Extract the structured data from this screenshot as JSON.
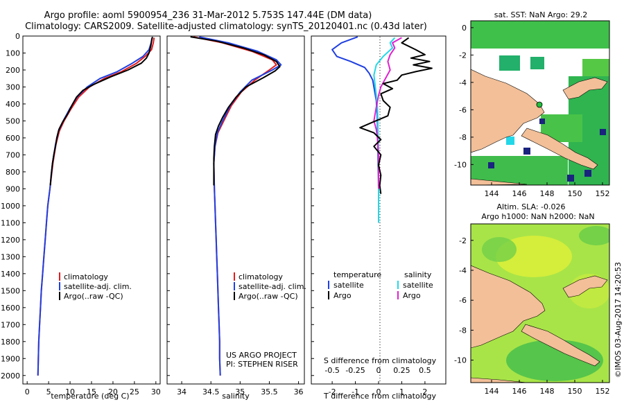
{
  "header": {
    "line1": "Argo profile: aoml 5900954_236 31-Mar-2012 5.753S 147.44E (DM data)",
    "line2": "Climatology: CARS2009. Satellite-adjusted climatology: synTS_20120401.nc (0.43d later)"
  },
  "colors": {
    "climatology": "#e41a1c",
    "satellite": "#1f3fe0",
    "argo": "#000000",
    "sal_satellite": "#22d8e8",
    "sal_argo": "#e020d0",
    "land": "#f2bf98"
  },
  "chart_data": [
    {
      "id": "temp",
      "type": "line",
      "xlabel": "temperature (deg C)",
      "xlim": [
        -1,
        31
      ],
      "ylim": [
        0,
        2050
      ],
      "y_inverted": true,
      "xticks": [
        0,
        5,
        10,
        15,
        20,
        25,
        30
      ],
      "yticks": [
        0,
        100,
        200,
        300,
        400,
        500,
        600,
        700,
        800,
        900,
        1000,
        1100,
        1200,
        1300,
        1400,
        1500,
        1600,
        1700,
        1800,
        1900,
        2000
      ],
      "legend": [
        "climatology",
        "satellite-adj. clim.",
        "Argo(..raw -QC)"
      ],
      "series": [
        {
          "name": "climatology",
          "color": "#e41a1c",
          "points": [
            [
              29.6,
              10
            ],
            [
              29.4,
              40
            ],
            [
              29.0,
              80
            ],
            [
              27.5,
              120
            ],
            [
              25.5,
              160
            ],
            [
              22.0,
              210
            ],
            [
              18.0,
              250
            ],
            [
              14.5,
              300
            ],
            [
              12.0,
              360
            ],
            [
              10.2,
              430
            ],
            [
              8.6,
              500
            ],
            [
              7.5,
              560
            ],
            [
              6.7,
              640
            ],
            [
              6.0,
              750
            ],
            [
              5.3,
              900
            ],
            [
              4.8,
              1000
            ],
            [
              4.5,
              1100
            ],
            [
              4.2,
              1200
            ],
            [
              3.9,
              1300
            ],
            [
              3.6,
              1400
            ],
            [
              3.3,
              1500
            ],
            [
              3.1,
              1600
            ],
            [
              2.9,
              1700
            ],
            [
              2.7,
              1800
            ],
            [
              2.6,
              1900
            ],
            [
              2.5,
              2000
            ]
          ]
        },
        {
          "name": "satellite-adj. clim.",
          "color": "#1f3fe0",
          "points": [
            [
              29.1,
              10
            ],
            [
              28.9,
              40
            ],
            [
              28.4,
              80
            ],
            [
              27.0,
              120
            ],
            [
              24.5,
              160
            ],
            [
              21.0,
              210
            ],
            [
              17.0,
              250
            ],
            [
              14.0,
              300
            ],
            [
              11.6,
              360
            ],
            [
              9.9,
              430
            ],
            [
              8.4,
              500
            ],
            [
              7.3,
              560
            ],
            [
              6.6,
              640
            ],
            [
              5.9,
              750
            ],
            [
              5.3,
              900
            ],
            [
              4.8,
              1000
            ],
            [
              4.5,
              1100
            ],
            [
              4.2,
              1200
            ],
            [
              3.9,
              1300
            ],
            [
              3.6,
              1400
            ],
            [
              3.3,
              1500
            ],
            [
              3.1,
              1600
            ],
            [
              2.9,
              1700
            ],
            [
              2.7,
              1800
            ],
            [
              2.6,
              1900
            ],
            [
              2.5,
              2000
            ]
          ]
        },
        {
          "name": "Argo(..raw -QC)",
          "color": "#000000",
          "points": [
            [
              29.2,
              5
            ],
            [
              29.0,
              30
            ],
            [
              28.8,
              60
            ],
            [
              28.4,
              100
            ],
            [
              27.8,
              130
            ],
            [
              26.6,
              160
            ],
            [
              23.5,
              200
            ],
            [
              19.5,
              240
            ],
            [
              15.5,
              285
            ],
            [
              13.0,
              320
            ],
            [
              11.5,
              360
            ],
            [
              10.6,
              400
            ],
            [
              9.4,
              460
            ],
            [
              8.2,
              510
            ],
            [
              7.4,
              550
            ],
            [
              6.9,
              600
            ],
            [
              6.6,
              650
            ],
            [
              6.2,
              700
            ],
            [
              5.9,
              750
            ],
            [
              5.6,
              820
            ],
            [
              5.4,
              880
            ]
          ]
        }
      ]
    },
    {
      "id": "sal",
      "type": "line",
      "xlabel": "salinity",
      "xlim": [
        33.75,
        36.1
      ],
      "ylim": [
        0,
        2050
      ],
      "y_inverted": true,
      "xticks": [
        34,
        34.5,
        35,
        35.5,
        36
      ],
      "legend": [
        "climatology",
        "satellite-adj. clim.",
        "Argo(..raw -QC)"
      ],
      "footer": [
        "US ARGO PROJECT",
        "PI: STEPHEN RISER"
      ],
      "series": [
        {
          "name": "climatology",
          "color": "#e41a1c",
          "points": [
            [
              34.2,
              5
            ],
            [
              34.7,
              40
            ],
            [
              35.2,
              90
            ],
            [
              35.55,
              140
            ],
            [
              35.62,
              170
            ],
            [
              35.5,
              200
            ],
            [
              35.25,
              260
            ],
            [
              35.02,
              330
            ],
            [
              34.85,
              410
            ],
            [
              34.72,
              500
            ],
            [
              34.62,
              570
            ],
            [
              34.57,
              650
            ],
            [
              34.55,
              750
            ],
            [
              34.56,
              900
            ],
            [
              34.57,
              1000
            ],
            [
              34.58,
              1100
            ],
            [
              34.59,
              1200
            ],
            [
              34.6,
              1300
            ],
            [
              34.61,
              1400
            ],
            [
              34.62,
              1500
            ],
            [
              34.63,
              1600
            ],
            [
              34.64,
              1700
            ],
            [
              34.65,
              1800
            ],
            [
              34.65,
              1900
            ],
            [
              34.66,
              2000
            ]
          ]
        },
        {
          "name": "satellite-adj. clim.",
          "color": "#1f3fe0",
          "points": [
            [
              34.3,
              5
            ],
            [
              34.8,
              40
            ],
            [
              35.3,
              90
            ],
            [
              35.62,
              140
            ],
            [
              35.7,
              170
            ],
            [
              35.55,
              200
            ],
            [
              35.2,
              260
            ],
            [
              35.0,
              330
            ],
            [
              34.83,
              410
            ],
            [
              34.7,
              500
            ],
            [
              34.61,
              570
            ],
            [
              34.57,
              650
            ],
            [
              34.55,
              750
            ],
            [
              34.56,
              900
            ],
            [
              34.57,
              1000
            ],
            [
              34.58,
              1100
            ],
            [
              34.59,
              1200
            ],
            [
              34.6,
              1300
            ],
            [
              34.61,
              1400
            ],
            [
              34.62,
              1500
            ],
            [
              34.63,
              1600
            ],
            [
              34.64,
              1700
            ],
            [
              34.65,
              1800
            ],
            [
              34.65,
              1900
            ],
            [
              34.66,
              2000
            ]
          ]
        },
        {
          "name": "Argo(..raw -QC)",
          "color": "#000000",
          "points": [
            [
              34.15,
              5
            ],
            [
              34.6,
              30
            ],
            [
              35.05,
              70
            ],
            [
              35.4,
              110
            ],
            [
              35.62,
              150
            ],
            [
              35.68,
              180
            ],
            [
              35.6,
              205
            ],
            [
              35.4,
              245
            ],
            [
              35.1,
              300
            ],
            [
              34.93,
              360
            ],
            [
              34.8,
              420
            ],
            [
              34.7,
              480
            ],
            [
              34.63,
              530
            ],
            [
              34.58,
              580
            ],
            [
              34.56,
              650
            ],
            [
              34.55,
              720
            ],
            [
              34.55,
              800
            ],
            [
              34.55,
              880
            ]
          ]
        }
      ]
    },
    {
      "id": "diff",
      "type": "line",
      "xlabel": "T difference from climatology",
      "x2label": "S difference from climatology",
      "xlim": [
        -2.9,
        2.9
      ],
      "ylim": [
        0,
        2050
      ],
      "y_inverted": true,
      "xticks": [
        -2,
        -1,
        0,
        1,
        2
      ],
      "x2ticks": [
        {
          "label": "-0.5",
          "value": -2
        },
        {
          "label": "-0.25",
          "value": -1
        },
        {
          "label": "0",
          "value": 0
        },
        {
          "label": "0.25",
          "value": 1
        },
        {
          "label": "0.5",
          "value": 2
        }
      ],
      "legend_left_title": "temperature",
      "legend_right_title": "salinity",
      "legend_left": [
        "satellite",
        "Argo"
      ],
      "legend_right": [
        "satellite",
        "Argo"
      ],
      "series": [
        {
          "name": "T satellite",
          "color": "#1f3fe0",
          "points": [
            [
              -0.9,
              5
            ],
            [
              -1.6,
              40
            ],
            [
              -2.0,
              80
            ],
            [
              -1.8,
              120
            ],
            [
              -1.2,
              150
            ],
            [
              -0.6,
              185
            ],
            [
              -0.4,
              220
            ],
            [
              -0.25,
              260
            ],
            [
              -0.2,
              300
            ],
            [
              -0.15,
              340
            ],
            [
              -0.1,
              380
            ],
            [
              -0.08,
              420
            ],
            [
              -0.06,
              460
            ],
            [
              -0.05,
              500
            ],
            [
              -0.04,
              560
            ],
            [
              -0.03,
              640
            ],
            [
              -0.02,
              720
            ],
            [
              -0.01,
              820
            ],
            [
              0,
              900
            ],
            [
              0,
              1000
            ],
            [
              0,
              1100
            ]
          ]
        },
        {
          "name": "S satellite",
          "color": "#22d8e8",
          "points": [
            [
              0.7,
              10
            ],
            [
              0.5,
              40
            ],
            [
              0.6,
              70
            ],
            [
              0.2,
              120
            ],
            [
              -0.1,
              170
            ],
            [
              -0.2,
              230
            ],
            [
              -0.15,
              290
            ],
            [
              -0.1,
              350
            ],
            [
              -0.05,
              420
            ],
            [
              -0.03,
              500
            ],
            [
              -0.02,
              600
            ],
            [
              0,
              700
            ],
            [
              0,
              800
            ],
            [
              0,
              900
            ],
            [
              0,
              1000
            ],
            [
              0,
              1100
            ]
          ]
        },
        {
          "name": "S Argo",
          "color": "#e020d0",
          "points": [
            [
              1.0,
              10
            ],
            [
              0.6,
              40
            ],
            [
              0.7,
              70
            ],
            [
              0.5,
              110
            ],
            [
              0.4,
              150
            ],
            [
              0.5,
              200
            ],
            [
              0.3,
              250
            ],
            [
              0.1,
              300
            ],
            [
              0.0,
              350
            ],
            [
              -0.1,
              420
            ],
            [
              -0.2,
              500
            ],
            [
              -0.1,
              550
            ],
            [
              -0.05,
              600
            ],
            [
              0,
              700
            ],
            [
              0,
              800
            ],
            [
              0,
              900
            ]
          ]
        },
        {
          "name": "T Argo",
          "color": "#000000",
          "points": [
            [
              1.3,
              10
            ],
            [
              1.0,
              40
            ],
            [
              1.6,
              80
            ],
            [
              2.0,
              110
            ],
            [
              1.4,
              130
            ],
            [
              2.2,
              150
            ],
            [
              1.5,
              170
            ],
            [
              2.3,
              190
            ],
            [
              1.6,
              210
            ],
            [
              1.0,
              230
            ],
            [
              0.8,
              260
            ],
            [
              0.2,
              280
            ],
            [
              0.6,
              310
            ],
            [
              0.1,
              340
            ],
            [
              0.2,
              380
            ],
            [
              0.5,
              420
            ],
            [
              0.4,
              470
            ],
            [
              -0.3,
              510
            ],
            [
              -0.8,
              540
            ],
            [
              -0.2,
              570
            ],
            [
              0.1,
              610
            ],
            [
              -0.2,
              650
            ],
            [
              0.1,
              700
            ],
            [
              0.0,
              760
            ],
            [
              0.1,
              820
            ],
            [
              0.05,
              880
            ],
            [
              0.1,
              930
            ]
          ]
        }
      ]
    }
  ],
  "maps": [
    {
      "id": "sst_map",
      "title": "sat. SST: NaN Argo: 29.2",
      "xticks": [
        "144",
        "146",
        "148",
        "150",
        "152"
      ],
      "yticks": [
        "0",
        "-2",
        "-4",
        "-6",
        "-8",
        "-10"
      ]
    },
    {
      "id": "sla_map",
      "title1": "Altim. SLA: -0.026",
      "title2": "Argo h1000: NaN h2000: NaN",
      "xticks": [
        "144",
        "146",
        "148",
        "150",
        "152"
      ],
      "yticks": [
        "-2",
        "-4",
        "-6",
        "-8",
        "-10"
      ]
    }
  ],
  "credit": "©IMOS 03-Aug-2017 14:20:53"
}
